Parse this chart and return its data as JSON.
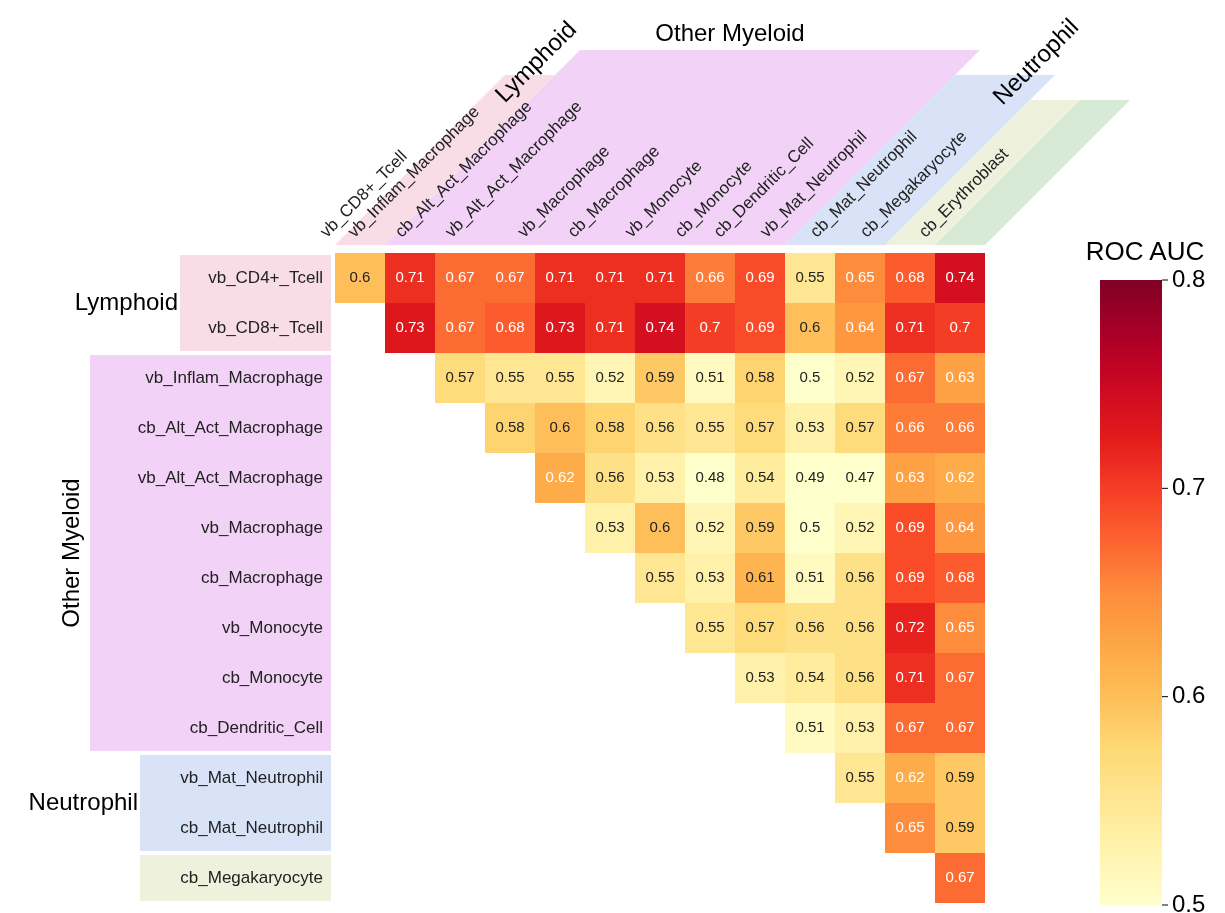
{
  "chart_data": {
    "type": "heatmap",
    "clabel": "ROC AUC",
    "annotations": [
      "Lymphoid",
      "Other Myeloid",
      "Neutrophil",
      "Lymphoid",
      "Other Myeloid",
      "Neutrophil"
    ],
    "categories": [
      "vb_CD8+_Tcell",
      "vb_Inflam_Macrophage",
      "cb_Alt_Act_Macrophage",
      "vb_Alt_Act_Macrophage",
      "vb_Macrophage",
      "cb_Macrophage",
      "vb_Monocyte",
      "cb_Monocyte",
      "cb_Dendritic_Cell",
      "vb_Mat_Neutrophil",
      "cb_Mat_Neutrophil",
      "cb_Megakaryocyte",
      "cb_Erythroblast"
    ],
    "y_categories": [
      "vb_CD4+_Tcell",
      "vb_CD8+_Tcell",
      "vb_Inflam_Macrophage",
      "cb_Alt_Act_Macrophage",
      "vb_Alt_Act_Macrophage",
      "vb_Macrophage",
      "cb_Macrophage",
      "vb_Monocyte",
      "cb_Monocyte",
      "cb_Dendritic_Cell",
      "vb_Mat_Neutrophil",
      "cb_Mat_Neutrophil",
      "cb_Megakaryocyte"
    ],
    "cells": [
      [
        0.6,
        0.71,
        0.67,
        0.67,
        0.71,
        0.71,
        0.71,
        0.66,
        0.69,
        0.55,
        0.65,
        0.68,
        0.74
      ],
      [
        null,
        0.73,
        0.67,
        0.68,
        0.73,
        0.71,
        0.74,
        0.7,
        0.69,
        0.6,
        0.64,
        0.71,
        0.7
      ],
      [
        null,
        null,
        0.57,
        0.55,
        0.55,
        0.52,
        0.59,
        0.51,
        0.58,
        0.5,
        0.52,
        0.67,
        0.63
      ],
      [
        null,
        null,
        null,
        0.58,
        0.6,
        0.58,
        0.56,
        0.55,
        0.57,
        0.53,
        0.57,
        0.66,
        0.66
      ],
      [
        null,
        null,
        null,
        null,
        0.62,
        0.56,
        0.53,
        0.48,
        0.54,
        0.49,
        0.47,
        0.63,
        0.62
      ],
      [
        null,
        null,
        null,
        null,
        null,
        0.53,
        0.6,
        0.52,
        0.59,
        0.5,
        0.52,
        0.69,
        0.64
      ],
      [
        null,
        null,
        null,
        null,
        null,
        null,
        0.55,
        0.53,
        0.61,
        0.51,
        0.56,
        0.69,
        0.68
      ],
      [
        null,
        null,
        null,
        null,
        null,
        null,
        null,
        0.55,
        0.57,
        0.56,
        0.56,
        0.72,
        0.65
      ],
      [
        null,
        null,
        null,
        null,
        null,
        null,
        null,
        null,
        0.53,
        0.54,
        0.56,
        0.71,
        0.67
      ],
      [
        null,
        null,
        null,
        null,
        null,
        null,
        null,
        null,
        null,
        0.51,
        0.53,
        0.67,
        0.67
      ],
      [
        null,
        null,
        null,
        null,
        null,
        null,
        null,
        null,
        null,
        null,
        0.55,
        0.62,
        0.59
      ],
      [
        null,
        null,
        null,
        null,
        null,
        null,
        null,
        null,
        null,
        null,
        null,
        0.65,
        0.59
      ],
      [
        null,
        null,
        null,
        null,
        null,
        null,
        null,
        null,
        null,
        null,
        null,
        null,
        0.67
      ]
    ],
    "data_labels": true,
    "clim": [
      0.5,
      0.8
    ],
    "cticks": [
      0.5,
      0.6,
      0.7,
      0.8
    ]
  }
}
